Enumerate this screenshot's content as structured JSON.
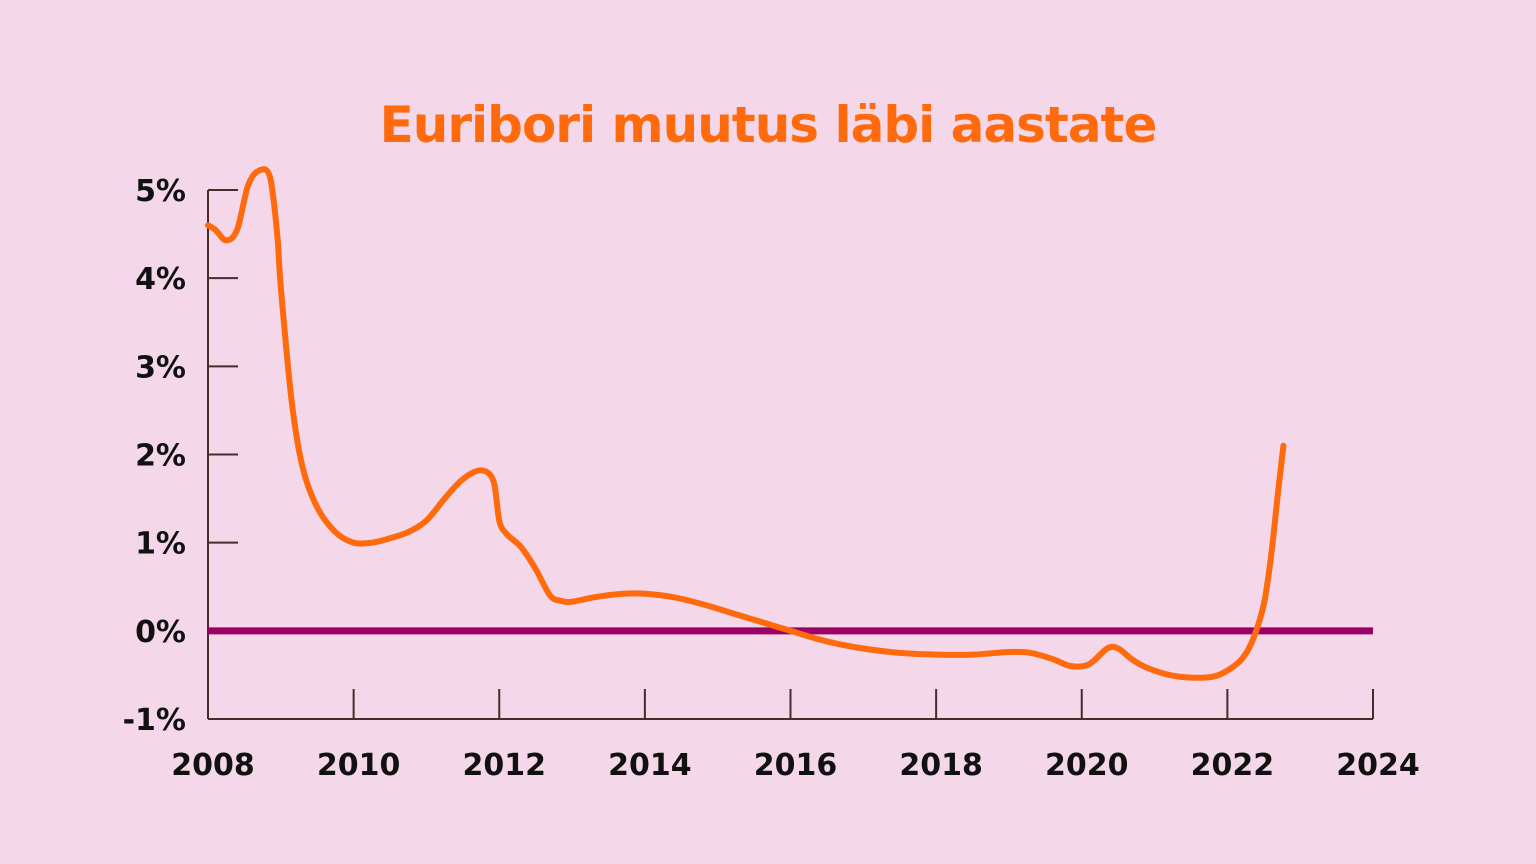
{
  "chart_data": {
    "type": "line",
    "title": "Euribori muutus läbi aastate",
    "xlabel": "",
    "ylabel": "",
    "x_ticks": [
      "2008",
      "2010",
      "2012",
      "2014",
      "2016",
      "2018",
      "2020",
      "2022",
      "2024"
    ],
    "y_ticks": [
      "5%",
      "4%",
      "3%",
      "2%",
      "1%",
      "0%",
      "-1%"
    ],
    "xlim": [
      2008,
      2024.5
    ],
    "ylim": [
      -1,
      5
    ],
    "grid": false,
    "series": [
      {
        "color": "#ff6a0d",
        "x": [
          2008.0,
          2008.1,
          2008.25,
          2008.4,
          2008.55,
          2008.7,
          2008.85,
          2008.95,
          2009.0,
          2009.15,
          2009.3,
          2009.5,
          2009.75,
          2010.0,
          2010.25,
          2010.5,
          2010.75,
          2011.0,
          2011.25,
          2011.5,
          2011.75,
          2011.92,
          2012.0,
          2012.1,
          2012.3,
          2012.5,
          2012.7,
          2012.85,
          2013.0,
          2013.3,
          2013.7,
          2014.0,
          2014.4,
          2014.8,
          2015.2,
          2015.6,
          2016.0,
          2016.5,
          2017.0,
          2017.5,
          2018.0,
          2018.5,
          2019.0,
          2019.3,
          2019.6,
          2019.85,
          2020.1,
          2020.35,
          2020.5,
          2020.7,
          2020.9,
          2021.2,
          2021.5,
          2021.8,
          2022.0,
          2022.2,
          2022.35,
          2022.5,
          2022.6,
          2022.7,
          2022.77
        ],
        "values": [
          4.6,
          4.55,
          4.43,
          4.55,
          5.05,
          5.22,
          5.15,
          4.5,
          3.9,
          2.6,
          1.85,
          1.4,
          1.12,
          1.0,
          1.0,
          1.05,
          1.12,
          1.25,
          1.5,
          1.72,
          1.82,
          1.7,
          1.25,
          1.1,
          0.95,
          0.7,
          0.4,
          0.34,
          0.33,
          0.38,
          0.42,
          0.42,
          0.38,
          0.3,
          0.2,
          0.1,
          0.0,
          -0.12,
          -0.2,
          -0.25,
          -0.27,
          -0.27,
          -0.24,
          -0.25,
          -0.32,
          -0.4,
          -0.38,
          -0.2,
          -0.2,
          -0.33,
          -0.42,
          -0.5,
          -0.53,
          -0.52,
          -0.45,
          -0.32,
          -0.1,
          0.3,
          0.85,
          1.6,
          2.1
        ]
      },
      {
        "color": "#9b0065",
        "x": [
          2008.0,
          2024.0
        ],
        "values": [
          0,
          0
        ]
      }
    ]
  }
}
